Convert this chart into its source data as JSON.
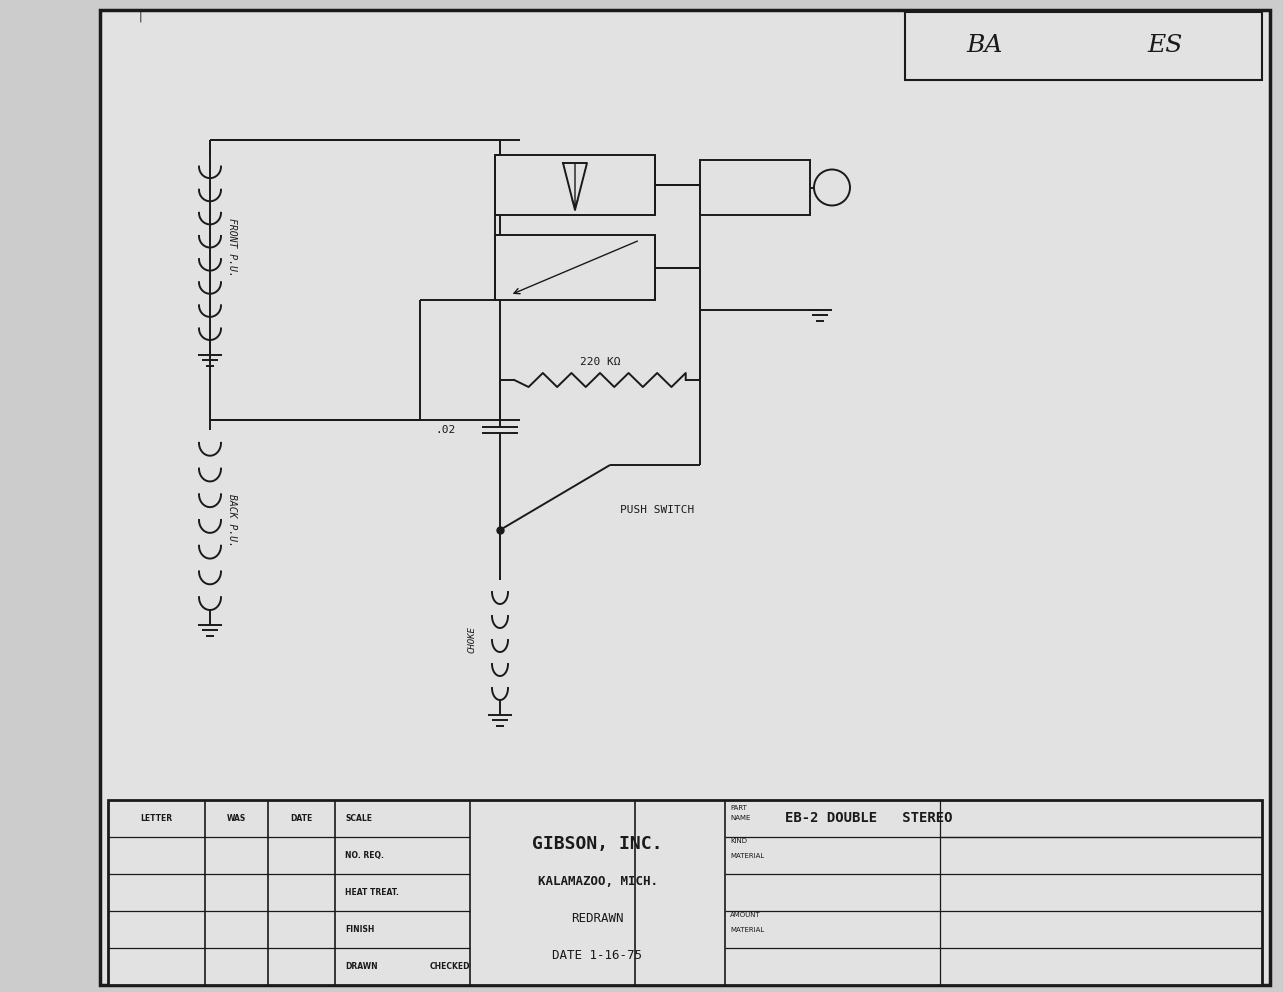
{
  "bg_color": "#cccccc",
  "paper_color": "#e2e2e2",
  "line_color": "#1a1a1a",
  "lw": 1.4,
  "title_box_text": "BA   ES",
  "gibson_text": "GIBSON, INC.",
  "kalamazoo_text": "KALAMAZOO, MICH.",
  "redrawn_text": "REDRAWN",
  "date_text": "DATE 1-16-75",
  "part_name_text": "EB-2 DOUBLE   STEREO",
  "letter_text": "LETTER",
  "was_text": "WAS",
  "date_col_text": "DATE",
  "scale_text": "SCALE",
  "no_req_text": "NO. REQ.",
  "heat_treat_text": "HEAT TREAT.",
  "finish_text": "FINISH",
  "drawn_text": "DRAWN",
  "checked_text": "CHECKED",
  "kind_text": "KIND",
  "material_text": "MATERIAL",
  "amount_text": "AMOUNT",
  "material2_text": "MATERIAL",
  "part_text": "PART",
  "name_text": "NAME",
  "front_pu_label": "FRONT P.U.",
  "back_pu_label": "BACK P.U.",
  "choke_label": "CHOKE",
  "resistor_label": "220 KΩ",
  "cap_label": ".02",
  "switch_label": "PUSH SWITCH"
}
